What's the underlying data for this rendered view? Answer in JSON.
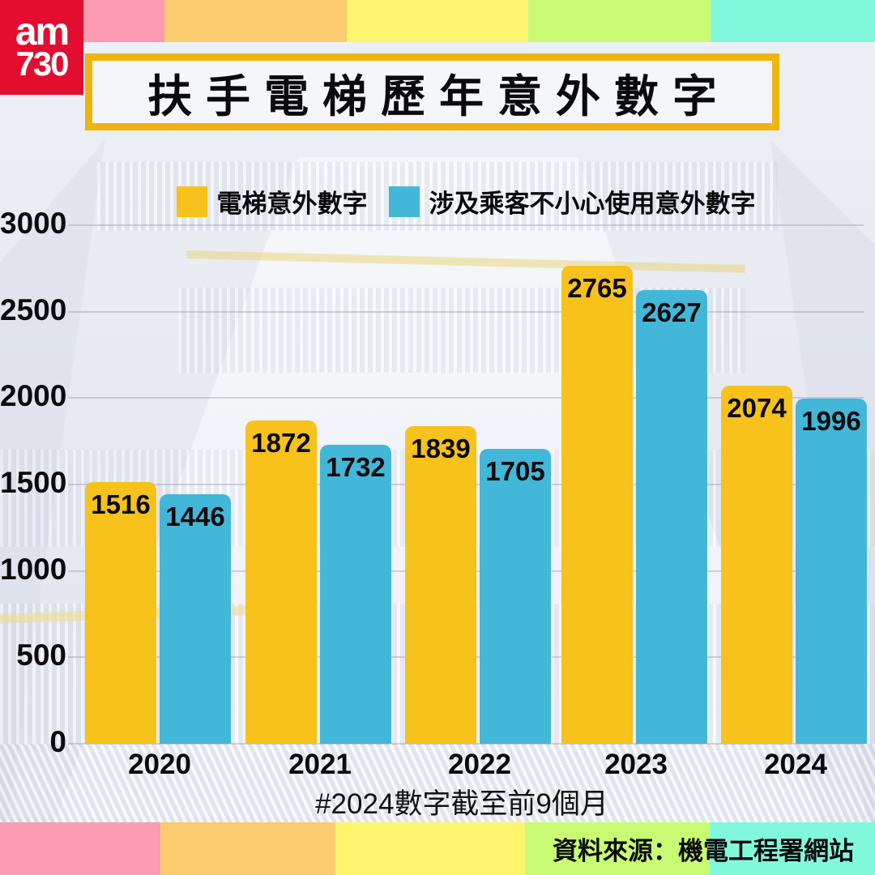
{
  "brand": {
    "line1": "am",
    "line2": "730"
  },
  "title": "扶手電梯歷年意外數字",
  "legend": [
    {
      "label": "電梯意外數字",
      "color": "#F6C21B"
    },
    {
      "label": "涉及乘客不小心使用意外數字",
      "color": "#43B7D7"
    }
  ],
  "footnote": "#2024數字截至前9個月",
  "source": "資料來源：機電工程署網站",
  "palette": {
    "background": "#E9EBF3",
    "logo_red": "#E30D2F",
    "title_border": "#EFB40F",
    "bar_yellow": "#F6C21B",
    "bar_blue": "#43B7D7",
    "stripes": [
      "#FA9BB0",
      "#FBCB70",
      "#FDF56E",
      "#C9FB72",
      "#81F8DC"
    ]
  },
  "chart_data": {
    "type": "bar",
    "categories": [
      "2020",
      "2021",
      "2022",
      "2023",
      "2024"
    ],
    "series": [
      {
        "name": "電梯意外數字",
        "color": "#F6C21B",
        "values": [
          1516,
          1872,
          1839,
          2765,
          2074
        ]
      },
      {
        "name": "涉及乘客不小心使用意外數字",
        "color": "#43B7D7",
        "values": [
          1446,
          1732,
          1705,
          2627,
          1996
        ]
      }
    ],
    "ylim": [
      0,
      3000
    ],
    "yticks": [
      0,
      500,
      1000,
      1500,
      2000,
      2500,
      3000
    ],
    "grid": true,
    "legend_position": "top",
    "value_labels": "inside-top"
  }
}
